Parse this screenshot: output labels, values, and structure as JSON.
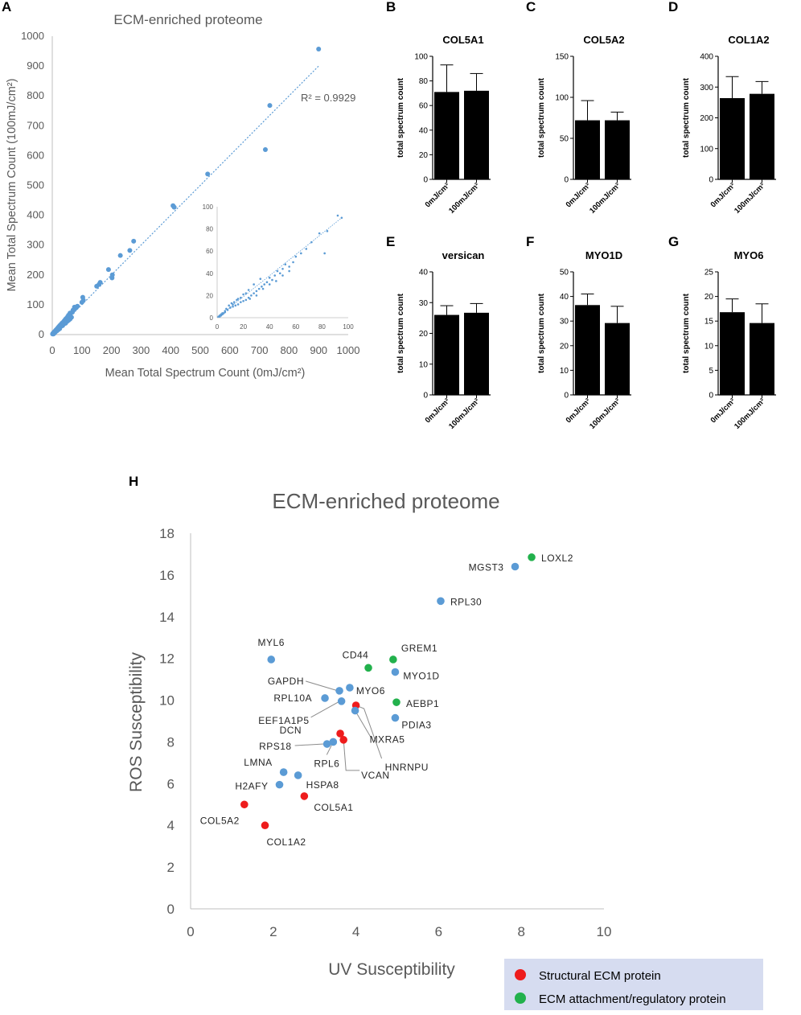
{
  "colors": {
    "blue": "#5b9bd5",
    "red": "#ee1c1c",
    "green": "#22b14c",
    "bar": "#000000",
    "axis_gray": "#bfbfbf",
    "text_gray": "#595959",
    "legend_bg": "#d6dcf0"
  },
  "chart_data": [
    {
      "panel": "A",
      "type": "scatter",
      "title": "ECM-enriched proteome",
      "xlabel": "Mean Total Spectrum Count (0mJ/cm²)",
      "ylabel": "Mean Total Spectrum Count (100mJ/cm²)",
      "xlim": [
        0,
        1000
      ],
      "ylim": [
        0,
        1000
      ],
      "xticks": [
        "0",
        "100",
        "200",
        "300",
        "400",
        "500",
        "600",
        "700",
        "800",
        "900",
        "1000"
      ],
      "yticks": [
        "0",
        "100",
        "200",
        "300",
        "400",
        "500",
        "600",
        "700",
        "800",
        "900",
        "1000"
      ],
      "r2_label": "R² = 0.9929",
      "trendline": [
        [
          0,
          0
        ],
        [
          900,
          900
        ]
      ],
      "points": [
        [
          900,
          957
        ],
        [
          735,
          768
        ],
        [
          720,
          620
        ],
        [
          525,
          538
        ],
        [
          408,
          432
        ],
        [
          412,
          427
        ],
        [
          275,
          313
        ],
        [
          262,
          282
        ],
        [
          230,
          265
        ],
        [
          203,
          200
        ],
        [
          202,
          190
        ],
        [
          190,
          218
        ],
        [
          162,
          175
        ],
        [
          158,
          168
        ],
        [
          150,
          162
        ],
        [
          103,
          125
        ],
        [
          105,
          115
        ],
        [
          100,
          108
        ],
        [
          85,
          95
        ],
        [
          75,
          92
        ],
        [
          78,
          88
        ],
        [
          70,
          82
        ],
        [
          68,
          75
        ],
        [
          62,
          70
        ],
        [
          60,
          72
        ],
        [
          55,
          65
        ],
        [
          52,
          60
        ],
        [
          48,
          55
        ],
        [
          45,
          52
        ],
        [
          42,
          48
        ],
        [
          40,
          45
        ],
        [
          38,
          42
        ],
        [
          35,
          40
        ],
        [
          33,
          38
        ],
        [
          30,
          35
        ],
        [
          28,
          32
        ],
        [
          25,
          30
        ],
        [
          22,
          26
        ],
        [
          20,
          24
        ],
        [
          18,
          21
        ],
        [
          15,
          18
        ],
        [
          12,
          15
        ],
        [
          10,
          12
        ],
        [
          8,
          10
        ],
        [
          5,
          7
        ],
        [
          3,
          5
        ],
        [
          2,
          3
        ],
        [
          1,
          2
        ],
        [
          30,
          28
        ],
        [
          35,
          30
        ],
        [
          40,
          36
        ],
        [
          45,
          38
        ],
        [
          50,
          44
        ],
        [
          55,
          48
        ],
        [
          60,
          52
        ],
        [
          65,
          58
        ],
        [
          25,
          20
        ],
        [
          20,
          16
        ],
        [
          15,
          12
        ],
        [
          10,
          8
        ],
        [
          6,
          4
        ],
        [
          4,
          2
        ]
      ],
      "inset": {
        "xlim": [
          0,
          100
        ],
        "ylim": [
          0,
          100
        ],
        "xticks": [
          "0",
          "20",
          "40",
          "60",
          "80",
          "100"
        ],
        "yticks": [
          "0",
          "20",
          "40",
          "60",
          "80",
          "100"
        ],
        "points": [
          [
            92,
            92
          ],
          [
            95,
            90
          ],
          [
            84,
            78
          ],
          [
            82,
            58
          ],
          [
            78,
            76
          ],
          [
            72,
            68
          ],
          [
            68,
            62
          ],
          [
            64,
            58
          ],
          [
            60,
            55
          ],
          [
            58,
            50
          ],
          [
            55,
            46
          ],
          [
            52,
            48
          ],
          [
            50,
            44
          ],
          [
            48,
            40
          ],
          [
            46,
            42
          ],
          [
            44,
            38
          ],
          [
            42,
            34
          ],
          [
            40,
            36
          ],
          [
            38,
            32
          ],
          [
            36,
            30
          ],
          [
            34,
            28
          ],
          [
            32,
            26
          ],
          [
            30,
            24
          ],
          [
            28,
            22
          ],
          [
            26,
            20
          ],
          [
            24,
            18
          ],
          [
            22,
            16
          ],
          [
            20,
            15
          ],
          [
            18,
            14
          ],
          [
            16,
            12
          ],
          [
            14,
            11
          ],
          [
            12,
            10
          ],
          [
            10,
            9
          ],
          [
            8,
            7
          ],
          [
            6,
            5
          ],
          [
            5,
            4
          ],
          [
            4,
            3
          ],
          [
            3,
            2
          ],
          [
            2,
            1
          ],
          [
            1,
            1
          ],
          [
            35,
            26
          ],
          [
            30,
            20
          ],
          [
            25,
            17
          ],
          [
            22,
            22
          ],
          [
            18,
            18
          ],
          [
            15,
            16
          ],
          [
            12,
            12
          ],
          [
            9,
            11
          ],
          [
            7,
            8
          ],
          [
            6,
            6
          ],
          [
            4,
            4
          ],
          [
            3,
            3
          ],
          [
            2,
            2
          ],
          [
            40,
            30
          ],
          [
            45,
            33
          ],
          [
            50,
            38
          ],
          [
            55,
            42
          ],
          [
            33,
            35
          ],
          [
            28,
            30
          ],
          [
            24,
            25
          ],
          [
            20,
            21
          ],
          [
            16,
            17
          ],
          [
            13,
            14
          ],
          [
            11,
            13
          ]
        ],
        "trendline": [
          [
            0,
            0
          ],
          [
            95,
            90
          ]
        ]
      }
    },
    {
      "panel": "B",
      "type": "bar",
      "title": "COL5A1",
      "ylabel": "total spectrum count",
      "categories": [
        "0mJ/cm²",
        "100mJ/cm²"
      ],
      "values": [
        71,
        72
      ],
      "errors": [
        22,
        14
      ],
      "ylim": [
        0,
        100
      ],
      "yticks": [
        "0",
        "20",
        "40",
        "60",
        "80",
        "100"
      ]
    },
    {
      "panel": "C",
      "type": "bar",
      "title": "COL5A2",
      "ylabel": "total spectrum count",
      "categories": [
        "0mJ/cm²",
        "100mJ/cm²"
      ],
      "values": [
        72,
        72
      ],
      "errors": [
        24,
        10
      ],
      "ylim": [
        0,
        150
      ],
      "yticks": [
        "0",
        "50",
        "100",
        "150"
      ]
    },
    {
      "panel": "D",
      "type": "bar",
      "title": "COL1A2",
      "ylabel": "total spectrum count",
      "categories": [
        "0mJ/cm²",
        "100mJ/cm²"
      ],
      "values": [
        264,
        278
      ],
      "errors": [
        70,
        40
      ],
      "ylim": [
        0,
        400
      ],
      "yticks": [
        "0",
        "100",
        "200",
        "300",
        "400"
      ]
    },
    {
      "panel": "E",
      "type": "bar",
      "title": "versican",
      "ylabel": "total spectrum count",
      "categories": [
        "0mJ/cm²",
        "100mJ/cm²"
      ],
      "values": [
        26,
        26.7
      ],
      "errors": [
        3,
        3
      ],
      "ylim": [
        0,
        40
      ],
      "yticks": [
        "0",
        "10",
        "20",
        "30",
        "40"
      ]
    },
    {
      "panel": "F",
      "type": "bar",
      "title": "MYO1D",
      "ylabel": "total spectrum count",
      "categories": [
        "0mJ/cm²",
        "100mJ/cm²"
      ],
      "values": [
        36.5,
        29.2
      ],
      "errors": [
        4.5,
        6.8
      ],
      "ylim": [
        0,
        50
      ],
      "yticks": [
        "0",
        "10",
        "20",
        "30",
        "40",
        "50"
      ]
    },
    {
      "panel": "G",
      "type": "bar",
      "title": "MYO6",
      "ylabel": "total spectrum count",
      "categories": [
        "0mJ/cm²",
        "100mJ/cm²"
      ],
      "values": [
        16.8,
        14.6
      ],
      "errors": [
        2.7,
        3.9
      ],
      "ylim": [
        0,
        25
      ],
      "yticks": [
        "0",
        "5",
        "10",
        "15",
        "20",
        "25"
      ]
    },
    {
      "panel": "H",
      "type": "scatter",
      "title": "ECM-enriched proteome",
      "xlabel": "UV Susceptibility",
      "ylabel": "ROS Susceptibility",
      "xlim": [
        0,
        10
      ],
      "ylim": [
        0,
        18
      ],
      "xticks": [
        "0",
        "2",
        "4",
        "6",
        "8",
        "10"
      ],
      "yticks": [
        "0",
        "2",
        "4",
        "6",
        "8",
        "10",
        "12",
        "14",
        "16",
        "18"
      ],
      "legend": [
        {
          "label": "Structural ECM protein",
          "color": "red"
        },
        {
          "label": "ECM attachment/regulatory protein",
          "color": "green"
        }
      ],
      "points": [
        {
          "x": 8.25,
          "y": 16.85,
          "c": "green",
          "label": "LOXL2"
        },
        {
          "x": 7.85,
          "y": 16.4,
          "c": "blue",
          "label": "MGST3"
        },
        {
          "x": 6.05,
          "y": 14.75,
          "c": "blue",
          "label": "RPL30"
        },
        {
          "x": 1.95,
          "y": 11.95,
          "c": "blue",
          "label": "MYL6"
        },
        {
          "x": 4.3,
          "y": 11.55,
          "c": "green",
          "label": "CD44"
        },
        {
          "x": 4.9,
          "y": 11.95,
          "c": "green",
          "label": "GREM1"
        },
        {
          "x": 4.95,
          "y": 11.35,
          "c": "blue",
          "label": "MYO1D"
        },
        {
          "x": 3.85,
          "y": 10.6,
          "c": "blue",
          "label": "MYO6"
        },
        {
          "x": 3.6,
          "y": 10.45,
          "c": "blue",
          "label": "GAPDH"
        },
        {
          "x": 3.25,
          "y": 10.1,
          "c": "blue",
          "label": "RPL10A"
        },
        {
          "x": 3.65,
          "y": 9.95,
          "c": "blue",
          "label": "EEF1A1P5"
        },
        {
          "x": 4.98,
          "y": 9.9,
          "c": "green",
          "label": "AEBP1"
        },
        {
          "x": 4.0,
          "y": 9.75,
          "c": "red",
          "label": "HNRNPU"
        },
        {
          "x": 3.98,
          "y": 9.5,
          "c": "blue",
          "label": "MXRA5"
        },
        {
          "x": 4.95,
          "y": 9.15,
          "c": "blue",
          "label": "PDIA3"
        },
        {
          "x": 3.62,
          "y": 8.4,
          "c": "red",
          "label": "DCN"
        },
        {
          "x": 3.7,
          "y": 8.1,
          "c": "red",
          "label": "VCAN"
        },
        {
          "x": 3.45,
          "y": 8.0,
          "c": "blue",
          "label": "RPL6"
        },
        {
          "x": 3.3,
          "y": 7.9,
          "c": "blue",
          "label": "RPS18"
        },
        {
          "x": 2.25,
          "y": 6.55,
          "c": "blue",
          "label": "LMNA"
        },
        {
          "x": 2.6,
          "y": 6.4,
          "c": "blue",
          "label": "HSPA8"
        },
        {
          "x": 2.15,
          "y": 5.95,
          "c": "blue",
          "label": "H2AFY"
        },
        {
          "x": 2.75,
          "y": 5.4,
          "c": "red",
          "label": "COL5A1"
        },
        {
          "x": 1.3,
          "y": 5.0,
          "c": "red",
          "label": "COL5A2"
        },
        {
          "x": 1.8,
          "y": 4.0,
          "c": "red",
          "label": "COL1A2"
        }
      ]
    }
  ]
}
